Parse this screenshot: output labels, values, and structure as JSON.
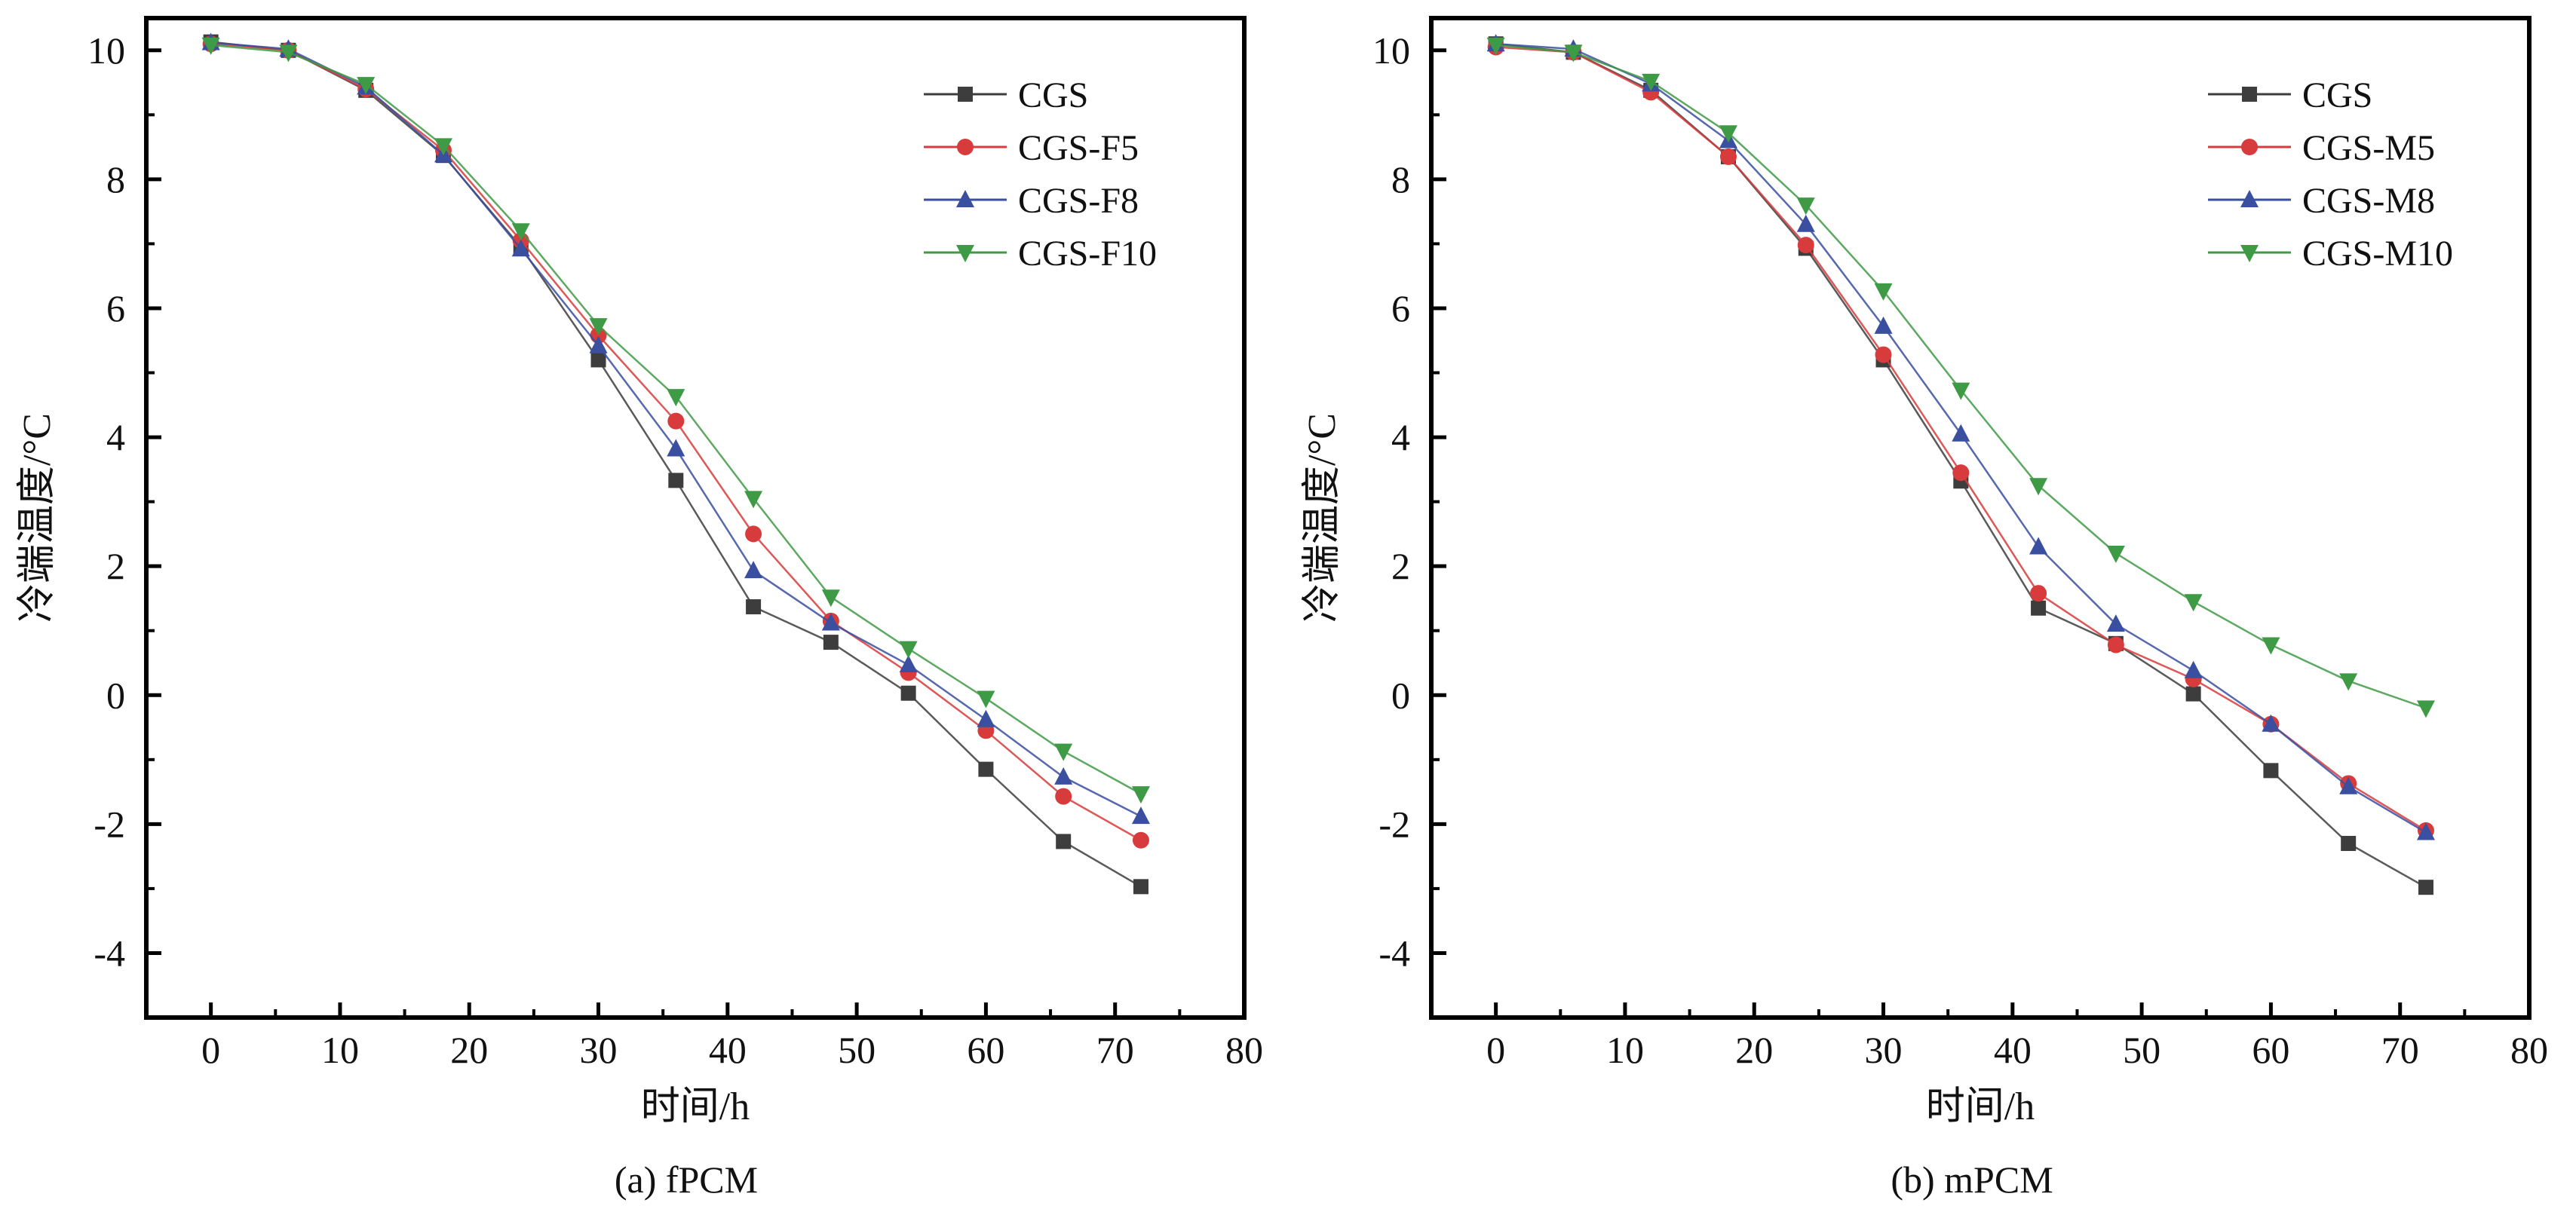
{
  "chart_data": [
    {
      "type": "line",
      "caption": "(a) fPCM",
      "xlabel": "时间/h",
      "ylabel": "冷端温度/°C",
      "xlim": [
        -5,
        80
      ],
      "ylim": [
        -5,
        10.5
      ],
      "xticks": [
        0,
        10,
        20,
        30,
        40,
        50,
        60,
        70,
        80
      ],
      "yticks": [
        -4,
        -2,
        0,
        2,
        4,
        6,
        8,
        10
      ],
      "legend_position": "top-right",
      "x": [
        0,
        6,
        12,
        18,
        24,
        30,
        36,
        42,
        48,
        54,
        60,
        66,
        72
      ],
      "series": [
        {
          "name": "CGS",
          "color": "#3d3d3d",
          "marker": "square",
          "values": [
            10.13,
            10.0,
            9.38,
            8.37,
            6.95,
            5.2,
            3.33,
            1.37,
            0.82,
            0.03,
            -1.15,
            -2.27,
            -2.97
          ]
        },
        {
          "name": "CGS-F5",
          "color": "#d83b3b",
          "marker": "circle",
          "values": [
            10.1,
            10.0,
            9.4,
            8.45,
            7.05,
            5.58,
            4.25,
            2.5,
            1.15,
            0.35,
            -0.55,
            -1.57,
            -2.25
          ]
        },
        {
          "name": "CGS-F8",
          "color": "#3a4fa0",
          "marker": "triangle-up",
          "values": [
            10.12,
            10.02,
            9.43,
            8.38,
            6.92,
            5.42,
            3.82,
            1.93,
            1.12,
            0.47,
            -0.38,
            -1.27,
            -1.88
          ]
        },
        {
          "name": "CGS-F10",
          "color": "#3f9a45",
          "marker": "triangle-down",
          "values": [
            10.08,
            9.97,
            9.47,
            8.52,
            7.2,
            5.73,
            4.63,
            3.05,
            1.52,
            0.72,
            -0.05,
            -0.87,
            -1.53
          ]
        }
      ]
    },
    {
      "type": "line",
      "caption": "(b) mPCM",
      "xlabel": "时间/h",
      "ylabel": "冷端温度/°C",
      "xlim": [
        -5,
        80
      ],
      "ylim": [
        -5,
        10.5
      ],
      "xticks": [
        0,
        10,
        20,
        30,
        40,
        50,
        60,
        70,
        80
      ],
      "yticks": [
        -4,
        -2,
        0,
        2,
        4,
        6,
        8,
        10
      ],
      "legend_position": "top-right",
      "x": [
        0,
        6,
        12,
        18,
        24,
        30,
        36,
        42,
        48,
        54,
        60,
        66,
        72
      ],
      "series": [
        {
          "name": "CGS",
          "color": "#3d3d3d",
          "marker": "square",
          "values": [
            10.1,
            9.97,
            9.38,
            8.35,
            6.93,
            5.2,
            3.32,
            1.35,
            0.8,
            0.02,
            -1.17,
            -2.3,
            -2.98
          ]
        },
        {
          "name": "CGS-M5",
          "color": "#d83b3b",
          "marker": "circle",
          "values": [
            10.05,
            9.97,
            9.35,
            8.35,
            6.98,
            5.28,
            3.45,
            1.58,
            0.78,
            0.25,
            -0.45,
            -1.37,
            -2.1
          ]
        },
        {
          "name": "CGS-M8",
          "color": "#3a4fa0",
          "marker": "triangle-up",
          "values": [
            10.1,
            10.02,
            9.48,
            8.6,
            7.3,
            5.72,
            4.05,
            2.3,
            1.1,
            0.38,
            -0.45,
            -1.42,
            -2.13
          ]
        },
        {
          "name": "CGS-M10",
          "color": "#3f9a45",
          "marker": "triangle-down",
          "values": [
            10.08,
            9.97,
            9.52,
            8.72,
            7.6,
            6.27,
            4.73,
            3.25,
            2.2,
            1.45,
            0.78,
            0.22,
            -0.2
          ]
        }
      ]
    }
  ]
}
